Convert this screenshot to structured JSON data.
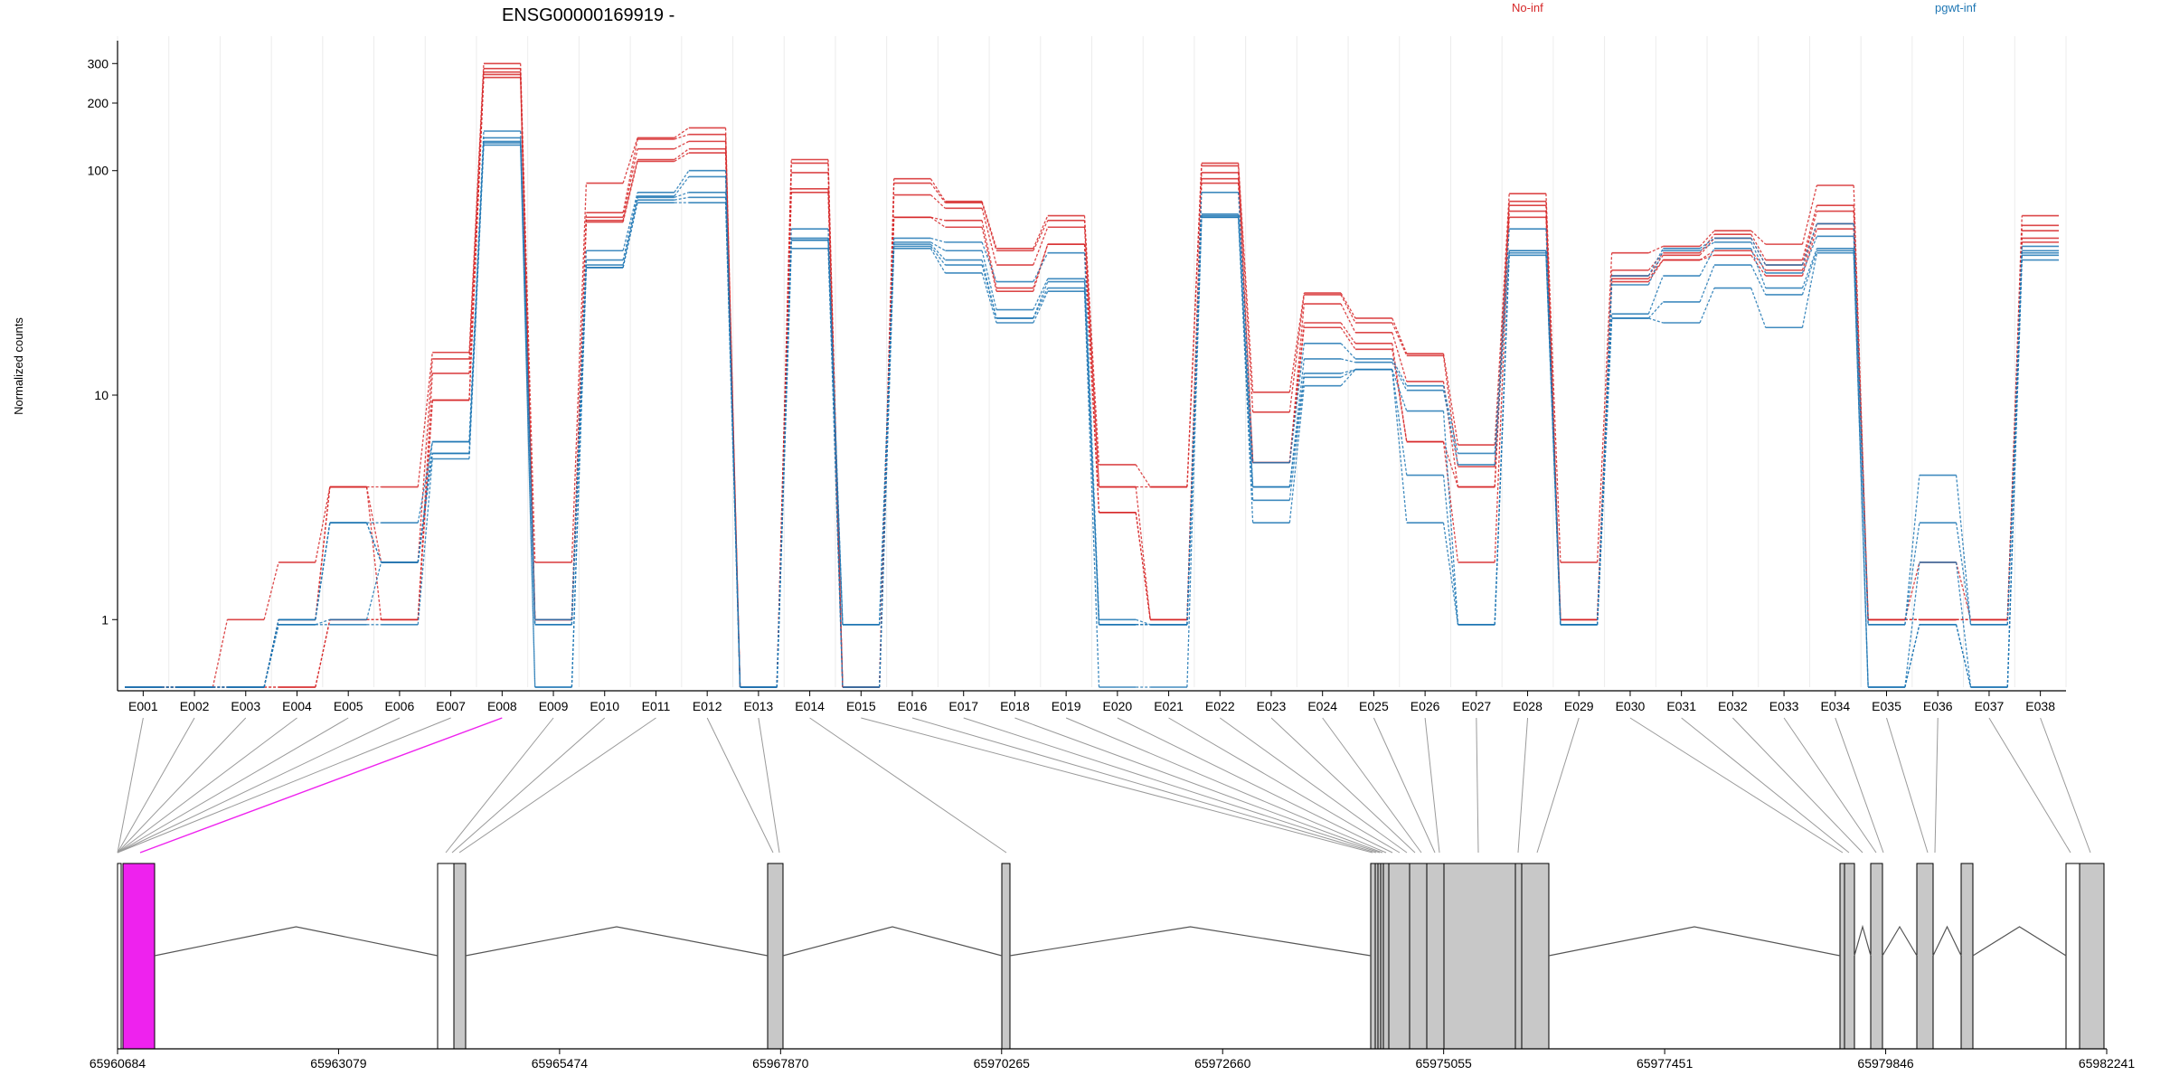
{
  "title": "ENSG00000169919 -",
  "ylabel": "Normalized counts",
  "legend": [
    {
      "name": "No-inf",
      "color": "#d62728"
    },
    {
      "name": "pgwt-inf",
      "color": "#1f77b4"
    }
  ],
  "chart_data": {
    "type": "line",
    "scale": "log",
    "ylim": [
      0.5,
      330
    ],
    "yticks": [
      1,
      10,
      100,
      200,
      300
    ],
    "grid": true,
    "categories": [
      "E001",
      "E002",
      "E003",
      "E004",
      "E005",
      "E006",
      "E007",
      "E008",
      "E009",
      "E010",
      "E011",
      "E012",
      "E013",
      "E014",
      "E015",
      "E016",
      "E017",
      "E018",
      "E019",
      "E020",
      "E021",
      "E022",
      "E023",
      "E024",
      "E025",
      "E026",
      "E027",
      "E028",
      "E029",
      "E030",
      "E031",
      "E032",
      "E033",
      "E034",
      "E035",
      "E036",
      "E037",
      "E038"
    ],
    "series": [
      {
        "group": "No-inf",
        "color": "#d62728",
        "values": [
          0.5,
          0.5,
          1,
          1.8,
          3.9,
          3.9,
          15.5,
          300,
          1.8,
          88,
          140,
          155,
          0.5,
          112,
          0.5,
          92,
          73,
          45,
          63,
          4.9,
          3.9,
          108,
          10.3,
          28.5,
          22,
          15.3,
          6,
          79,
          1.8,
          43,
          46,
          54,
          47,
          86,
          1,
          1,
          1,
          63
        ]
      },
      {
        "group": "No-inf",
        "color": "#d62728",
        "values": [
          0.5,
          0.5,
          0.5,
          1,
          3.9,
          1.8,
          14.5,
          285,
          1,
          65,
          138,
          145,
          0.5,
          108,
          0.5,
          88,
          72,
          44,
          60,
          3.9,
          3.9,
          105,
          8.4,
          28,
          21,
          15,
          4.8,
          73,
          1,
          36,
          43,
          52,
          40,
          70,
          1,
          1,
          1,
          57
        ]
      },
      {
        "group": "No-inf",
        "color": "#d62728",
        "values": [
          0.5,
          0.5,
          0.5,
          1,
          3.9,
          1,
          12.5,
          275,
          1,
          62,
          125,
          135,
          0.5,
          98,
          0.5,
          78,
          68,
          38,
          56,
          3.9,
          1,
          98,
          5,
          25.5,
          19,
          11.5,
          3.9,
          70,
          1,
          34,
          42,
          50,
          38,
          66,
          1,
          1.8,
          1,
          54
        ]
      },
      {
        "group": "No-inf",
        "color": "#d62728",
        "values": [
          0.5,
          0.5,
          0.5,
          0.5,
          1,
          1,
          9.5,
          268,
          1,
          60,
          112,
          125,
          0.5,
          83,
          0.5,
          62,
          60,
          30,
          47,
          3,
          1,
          92,
          5,
          21,
          17,
          6.2,
          3.9,
          66,
          1,
          33,
          40,
          44,
          36,
          58,
          1,
          1,
          1,
          50
        ]
      },
      {
        "group": "No-inf",
        "color": "#d62728",
        "values": [
          0.5,
          0.5,
          0.5,
          0.5,
          1,
          1,
          9.5,
          260,
          1,
          59,
          110,
          120,
          0.5,
          80,
          0.5,
          62,
          56,
          29,
          47,
          3,
          1,
          88,
          5,
          20,
          16,
          6.2,
          1.8,
          62,
          1,
          32,
          40,
          42,
          34,
          55,
          1,
          1,
          1,
          48
        ]
      },
      {
        "group": "pgwt-inf",
        "color": "#1f77b4",
        "values": [
          0.5,
          0.5,
          0.5,
          1,
          2.7,
          2.7,
          6.2,
          150,
          1,
          44,
          80,
          100,
          0.5,
          55,
          0.95,
          50,
          48,
          32,
          43,
          1,
          0.95,
          80,
          5,
          17,
          14.5,
          11,
          5.5,
          55,
          0.95,
          34,
          45,
          50,
          38,
          58,
          0.95,
          4.4,
          0.95,
          46
        ]
      },
      {
        "group": "pgwt-inf",
        "color": "#1f77b4",
        "values": [
          0.5,
          0.5,
          0.5,
          1,
          2.7,
          1.8,
          6.2,
          140,
          0.95,
          40,
          77,
          94,
          0.5,
          50,
          0.95,
          48,
          44,
          24,
          33,
          0.95,
          0.95,
          64,
          3.9,
          14.5,
          14,
          10.5,
          4.9,
          44,
          0.95,
          31,
          44,
          48,
          35,
          51,
          0.95,
          2.7,
          0.95,
          44
        ]
      },
      {
        "group": "pgwt-inf",
        "color": "#1f77b4",
        "values": [
          0.5,
          0.5,
          0.5,
          1,
          2.7,
          1.8,
          5.5,
          135,
          0.95,
          38,
          76,
          80,
          0.5,
          49,
          0.95,
          47,
          40,
          22,
          32,
          0.95,
          0.95,
          63,
          3.9,
          12.5,
          13,
          8.5,
          0.95,
          44,
          0.95,
          23,
          34,
          45,
          30,
          45,
          0.5,
          1.8,
          0.5,
          43
        ]
      },
      {
        "group": "pgwt-inf",
        "color": "#1f77b4",
        "values": [
          0.5,
          0.5,
          0.5,
          0.95,
          1,
          1.8,
          5.5,
          133,
          0.5,
          37,
          74,
          76,
          0.5,
          49,
          0.5,
          46,
          38,
          22,
          30,
          0.95,
          0.95,
          62,
          3.4,
          12,
          13,
          4.4,
          0.95,
          43,
          0.95,
          22,
          26,
          38,
          28,
          44,
          0.5,
          0.95,
          0.5,
          42
        ]
      },
      {
        "group": "pgwt-inf",
        "color": "#1f77b4",
        "values": [
          0.5,
          0.5,
          0.5,
          0.95,
          0.95,
          0.95,
          5.2,
          130,
          0.5,
          37,
          72,
          72,
          0.5,
          45,
          0.5,
          45,
          35,
          21,
          29,
          0.5,
          0.5,
          62,
          2.7,
          11,
          13,
          2.7,
          0.95,
          42,
          0.95,
          22,
          21,
          30,
          20,
          43,
          0.5,
          0.95,
          0.5,
          40
        ]
      }
    ]
  },
  "gene_model": {
    "genomic_ticks": [
      "65960684",
      "65963079",
      "65965474",
      "65967870",
      "65970265",
      "65972660",
      "65975055",
      "65977451",
      "65979846",
      "65982241"
    ],
    "highlight_bin": "E008",
    "highlight_color": "#ee22ee"
  }
}
